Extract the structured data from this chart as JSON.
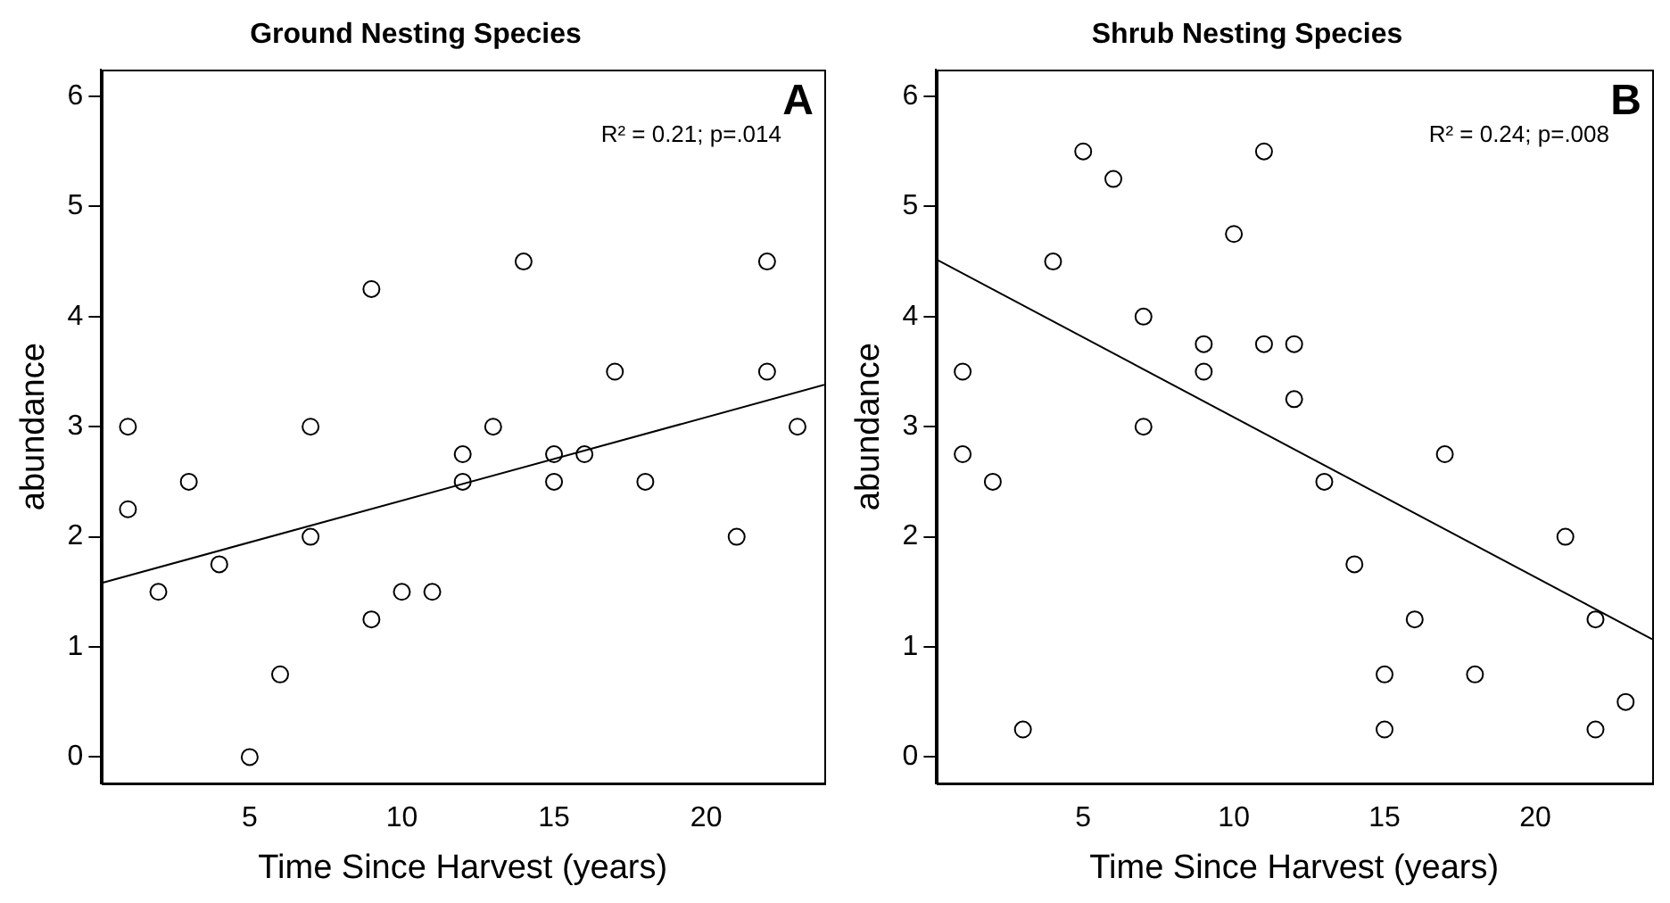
{
  "chart_data": [
    {
      "type": "scatter",
      "title": "Ground Nesting Species",
      "xlabel": "Time Since Harvest (years)",
      "ylabel": "abundance",
      "xlim": [
        0.12,
        23.88
      ],
      "xticks": [
        5,
        10,
        15,
        20
      ],
      "ylim": [
        -0.24,
        6.24
      ],
      "yticks": [
        0,
        1,
        2,
        3,
        4,
        5,
        6
      ],
      "grid": false,
      "legend": false,
      "annotations": [
        "A",
        "R² = 0.21; p=.014"
      ],
      "series": [
        {
          "type": "scatter",
          "marker": "circle",
          "color": "#000000",
          "x": [
            1,
            1,
            2,
            3,
            4,
            5,
            6,
            7,
            7,
            9,
            9,
            10,
            11,
            12,
            12,
            13,
            14,
            15,
            15,
            16,
            17,
            18,
            21,
            22,
            22,
            23
          ],
          "values": [
            3,
            2.25,
            1.5,
            2.5,
            1.75,
            0,
            0.75,
            3,
            2,
            4.25,
            1.25,
            1.5,
            1.5,
            2.75,
            2.5,
            3,
            4.5,
            2.75,
            2.5,
            2.75,
            3.5,
            2.5,
            2,
            4.5,
            3.5,
            3
          ]
        },
        {
          "type": "line",
          "color": "#000000",
          "x": [
            0.12,
            23.88
          ],
          "values": [
            1.58,
            3.38
          ]
        }
      ]
    },
    {
      "type": "scatter",
      "title": "Shrub Nesting Species",
      "xlabel": "Time Since Harvest (years)",
      "ylabel": "abundance",
      "xlim": [
        0.12,
        23.88
      ],
      "xticks": [
        5,
        10,
        15,
        20
      ],
      "ylim": [
        -0.24,
        6.24
      ],
      "yticks": [
        0,
        1,
        2,
        3,
        4,
        5,
        6
      ],
      "grid": false,
      "legend": false,
      "annotations": [
        "B",
        "R² = 0.24; p=.008"
      ],
      "series": [
        {
          "type": "scatter",
          "marker": "circle",
          "color": "#000000",
          "x": [
            1,
            1,
            2,
            3,
            4,
            5,
            6,
            7,
            7,
            9,
            9,
            10,
            11,
            11,
            12,
            12,
            13,
            14,
            15,
            15,
            16,
            17,
            18,
            21,
            22,
            22,
            23
          ],
          "values": [
            3.5,
            2.75,
            2.5,
            0.25,
            4.5,
            5.5,
            5.25,
            4,
            3,
            3.75,
            3.5,
            4.75,
            5.5,
            3.75,
            3.75,
            3.25,
            2.5,
            1.75,
            0.75,
            0.25,
            1.25,
            2.75,
            0.75,
            2,
            1.25,
            0.25,
            0.5
          ]
        },
        {
          "type": "line",
          "color": "#000000",
          "x": [
            0.12,
            23.88
          ],
          "values": [
            4.52,
            1.07
          ]
        }
      ]
    }
  ]
}
